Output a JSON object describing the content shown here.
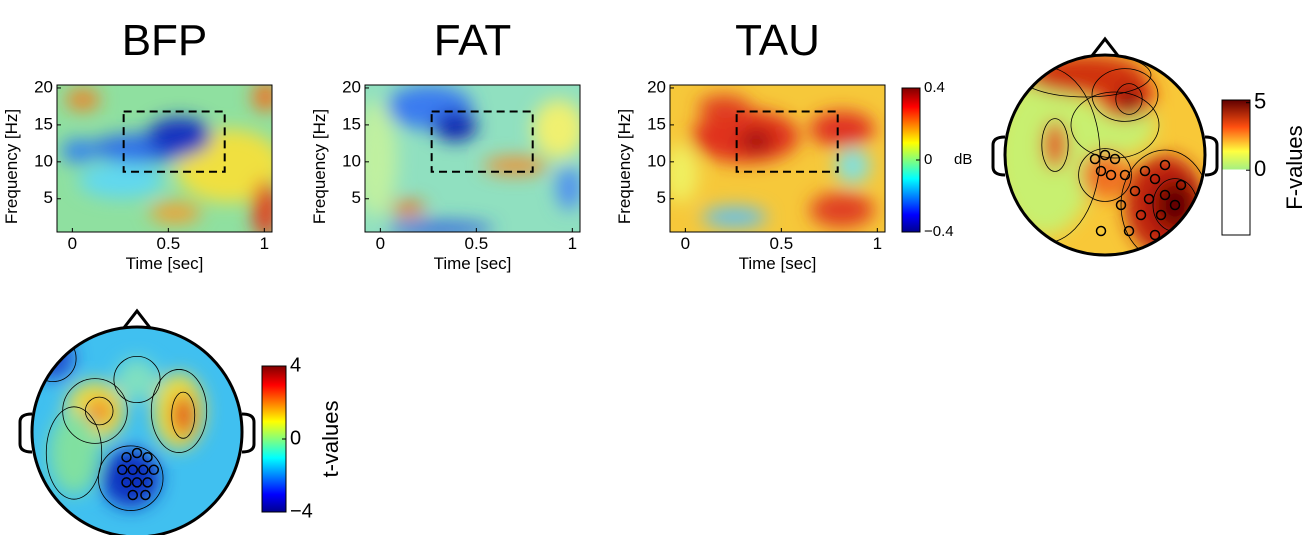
{
  "chart_data": [
    {
      "type": "heatmap",
      "title": "BFP",
      "xlabel": "Time [sec]",
      "ylabel": "Frequency [Hz]",
      "xlim": [
        -0.08,
        1.04
      ],
      "ylim": [
        0.5,
        20.4
      ],
      "xticks": [
        0,
        0.5,
        1
      ],
      "yticks": [
        5,
        10,
        15,
        20
      ]
    },
    {
      "type": "heatmap",
      "title": "FAT",
      "xlabel": "Time [sec]",
      "ylabel": "Frequency [Hz]",
      "xlim": [
        -0.08,
        1.04
      ],
      "ylim": [
        0.5,
        20.4
      ],
      "xticks": [
        0,
        0.5,
        1
      ],
      "yticks": [
        5,
        10,
        15,
        20
      ]
    },
    {
      "type": "heatmap",
      "title": "TAU",
      "xlabel": "Time [sec]",
      "ylabel": "Frequency [Hz]",
      "xlim": [
        -0.08,
        1.04
      ],
      "ylim": [
        0.5,
        20.4
      ],
      "xticks": [
        0,
        0.5,
        1
      ],
      "yticks": [
        5,
        10,
        15,
        20
      ],
      "colorbar": {
        "unit": "dB",
        "lim": [
          -0.4,
          0.4
        ],
        "ticks": [
          0.4,
          0,
          {
            "value": -0.4,
            "label": "−0.4"
          }
        ]
      }
    },
    {
      "type": "topoplot",
      "colorbar": {
        "label": "F-values",
        "lim": [
          -4.8,
          5.2
        ],
        "ticks": [
          5,
          0
        ]
      }
    },
    {
      "type": "topoplot",
      "colorbar": {
        "label": "t-values",
        "lim": [
          -4,
          4
        ],
        "ticks": [
          4,
          0,
          {
            "value": -4,
            "label": "−4"
          }
        ]
      }
    }
  ]
}
